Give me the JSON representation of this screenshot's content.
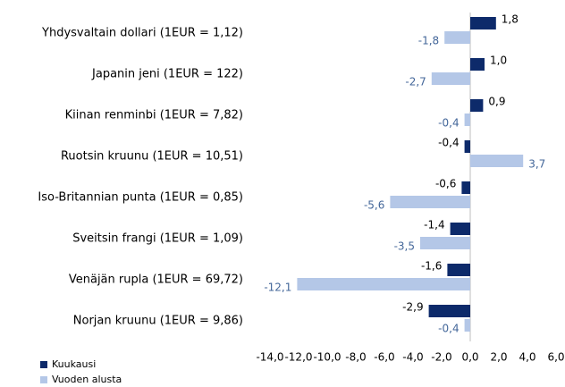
{
  "chart_data": {
    "type": "bar",
    "orientation": "horizontal",
    "categories": [
      "Yhdysvaltain dollari (1EUR = 1,12)",
      "Japanin jeni (1EUR = 122)",
      "Kiinan renminbi (1EUR = 7,82)",
      "Ruotsin kruunu (1EUR = 10,51)",
      "Iso-Britannian punta (1EUR = 0,85)",
      "Sveitsin frangi (1EUR = 1,09)",
      "Venäjän rupla (1EUR = 69,72)",
      "Norjan kruunu (1EUR = 9,86)"
    ],
    "series": [
      {
        "name": "Kuukausi",
        "color": "#0d2a6a",
        "label_color": "#000000",
        "values": [
          1.8,
          1.0,
          0.9,
          -0.4,
          -0.6,
          -1.4,
          -1.6,
          -2.9
        ],
        "value_labels": [
          "1,8",
          "1,0",
          "0,9",
          "-0,4",
          "-0,6",
          "-1,4",
          "-1,6",
          "-2,9"
        ]
      },
      {
        "name": "Vuoden alusta",
        "color": "#b4c7e7",
        "label_color": "#44679a",
        "values": [
          -1.8,
          -2.7,
          -0.4,
          3.7,
          -5.6,
          -3.5,
          -12.1,
          -0.4
        ],
        "value_labels": [
          "-1,8",
          "-2,7",
          "-0,4",
          "3,7",
          "-5,6",
          "-3,5",
          "-12,1",
          "-0,4"
        ]
      }
    ],
    "xlim": [
      -14,
      6
    ],
    "xticks": [
      {
        "value": -14,
        "label": "-14,0"
      },
      {
        "value": -12,
        "label": "-12,0"
      },
      {
        "value": -10,
        "label": "-10,0"
      },
      {
        "value": -8,
        "label": "-8,0"
      },
      {
        "value": -6,
        "label": "-6,0"
      },
      {
        "value": -4,
        "label": "-4,0"
      },
      {
        "value": -2,
        "label": "-2,0"
      },
      {
        "value": 0,
        "label": "0,0"
      },
      {
        "value": 2,
        "label": "2,0"
      },
      {
        "value": 4,
        "label": "4,0"
      },
      {
        "value": 6,
        "label": "6,0"
      }
    ],
    "legend": "bottom-left",
    "grid": false
  }
}
